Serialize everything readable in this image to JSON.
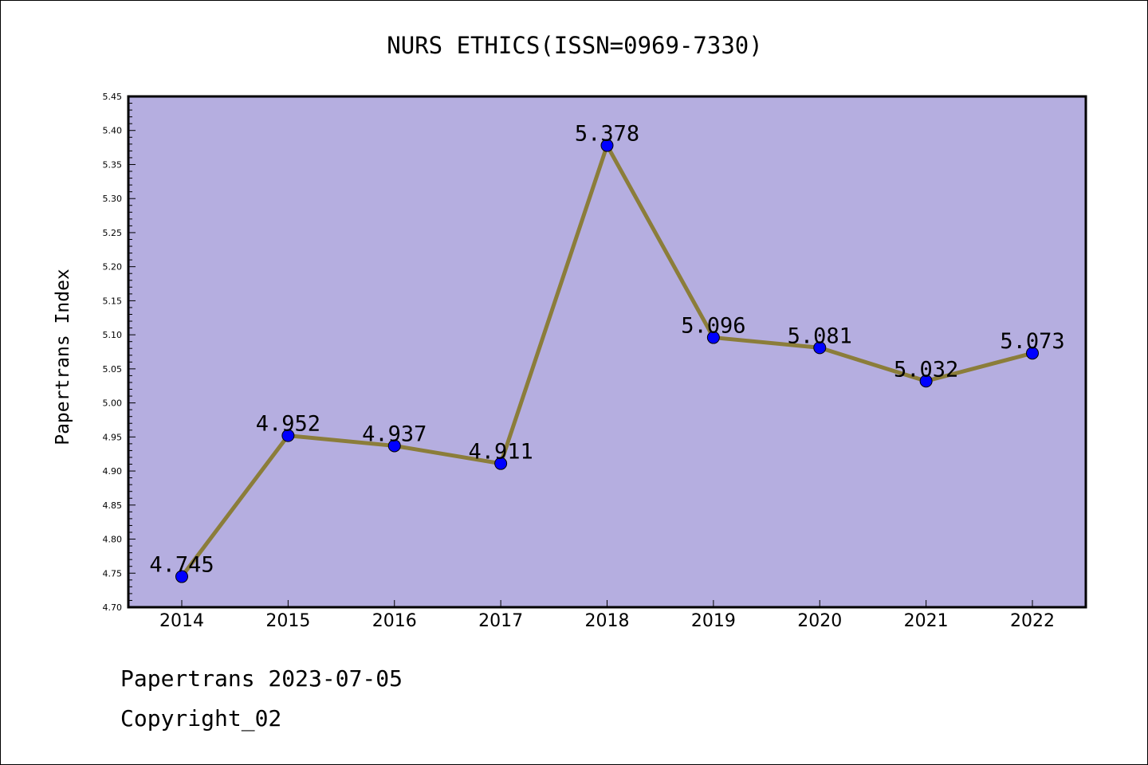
{
  "chart_data": {
    "type": "line",
    "title": "NURS ETHICS(ISSN=0969-7330)",
    "ylabel": "Papertrans Index",
    "xlabel": "",
    "categories": [
      "2014",
      "2015",
      "2016",
      "2017",
      "2018",
      "2019",
      "2020",
      "2021",
      "2022"
    ],
    "values": [
      4.745,
      4.952,
      4.937,
      4.911,
      5.378,
      5.096,
      5.081,
      5.032,
      5.073
    ],
    "data_labels": [
      "4.745",
      "4.952",
      "4.937",
      "4.911",
      "5.378",
      "5.096",
      "5.081",
      "5.032",
      "5.073"
    ],
    "ylim": [
      4.7,
      5.45
    ],
    "yticks": [
      "4.70",
      "4.75",
      "4.80",
      "4.85",
      "4.90",
      "4.95",
      "5.00",
      "5.05",
      "5.10",
      "5.15",
      "5.20",
      "5.25",
      "5.30",
      "5.35",
      "5.40",
      "5.45"
    ],
    "grid": false,
    "colors": {
      "plot_background": "#b5aee0",
      "line": "#8b7d3a",
      "marker": "#0000ff"
    }
  },
  "footer": {
    "source": "Papertrans 2023-07-05",
    "copyright": "Copyright_02"
  }
}
